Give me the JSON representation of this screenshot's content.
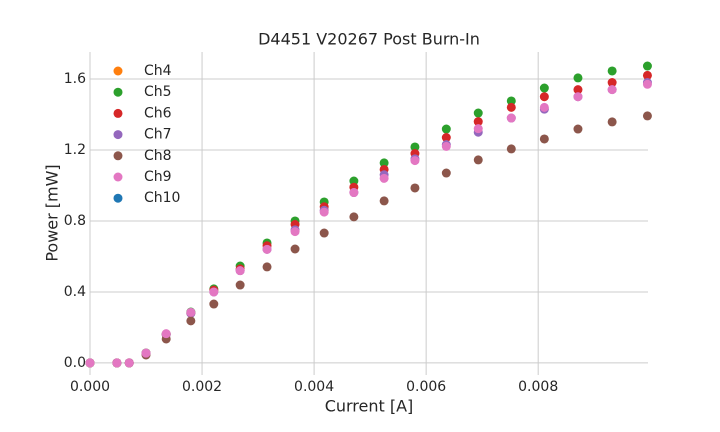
{
  "chart_data": {
    "type": "scatter",
    "title": "D4451 V20267 Post Burn-In",
    "x_label": "Current [A]",
    "y_label": "Power [mW]",
    "x": [
      0,
      0.00048,
      0.0007,
      0.001,
      0.00136,
      0.0018,
      0.00221,
      0.00268,
      0.00316,
      0.00366,
      0.00418,
      0.00471,
      0.00525,
      0.0058,
      0.00636,
      0.00693,
      0.00752,
      0.00811,
      0.00871,
      0.00932,
      0.00995
    ],
    "series": [
      {
        "name": "Ch4",
        "color": "#ff7f0e",
        "values": [
          null,
          null,
          null,
          null,
          null,
          null,
          null,
          null,
          null,
          null,
          null,
          null,
          null,
          null,
          null,
          null,
          null,
          null,
          null,
          null,
          null
        ]
      },
      {
        "name": "Ch5",
        "color": "#2ca02c",
        "values": [
          0,
          0,
          0,
          0.056,
          0.163,
          0.287,
          0.417,
          0.546,
          0.676,
          0.8,
          0.907,
          1.025,
          1.127,
          1.217,
          1.318,
          1.408,
          1.476,
          1.549,
          1.606,
          1.645,
          1.673
        ]
      },
      {
        "name": "Ch6",
        "color": "#d62728",
        "values": [
          0,
          0,
          0,
          0.055,
          0.16,
          0.28,
          0.41,
          0.53,
          0.66,
          0.78,
          0.88,
          0.99,
          1.09,
          1.18,
          1.27,
          1.36,
          1.44,
          1.5,
          1.54,
          1.58,
          1.62
        ]
      },
      {
        "name": "Ch7",
        "color": "#9467bd",
        "values": [
          0,
          0,
          0,
          0.055,
          0.16,
          0.28,
          0.4,
          0.52,
          0.64,
          0.75,
          0.86,
          0.96,
          1.06,
          1.15,
          1.23,
          1.3,
          1.38,
          1.43,
          1.5,
          1.54,
          1.58
        ]
      },
      {
        "name": "Ch8",
        "color": "#8c564b",
        "values": [
          0,
          0,
          0,
          0.045,
          0.135,
          0.237,
          0.332,
          0.439,
          0.541,
          0.642,
          0.732,
          0.823,
          0.913,
          0.986,
          1.07,
          1.144,
          1.206,
          1.262,
          1.318,
          1.358,
          1.392
        ]
      },
      {
        "name": "Ch9",
        "color": "#e377c2",
        "values": [
          0,
          0,
          0,
          0.055,
          0.165,
          0.285,
          0.4,
          0.52,
          0.64,
          0.74,
          0.85,
          0.96,
          1.04,
          1.14,
          1.22,
          1.32,
          1.38,
          1.44,
          1.5,
          1.54,
          1.57
        ]
      },
      {
        "name": "Ch10",
        "color": "#1f77b4",
        "values": [
          null,
          null,
          null,
          null,
          null,
          null,
          null,
          null,
          null,
          null,
          null,
          null,
          null,
          null,
          null,
          null,
          null,
          null,
          null,
          null,
          null
        ]
      }
    ],
    "xlim": [
      0,
      0.00996
    ],
    "ylim": [
      -0.068,
      1.752
    ],
    "xticks": [
      {
        "value": 0,
        "label": "0.000"
      },
      0.002,
      0.004,
      0.006,
      0.008
    ],
    "yticks": [
      {
        "value": 0,
        "label": "0.0"
      },
      0.4,
      0.8,
      1.2,
      1.6
    ],
    "grid": true,
    "legend": "upper-left"
  }
}
